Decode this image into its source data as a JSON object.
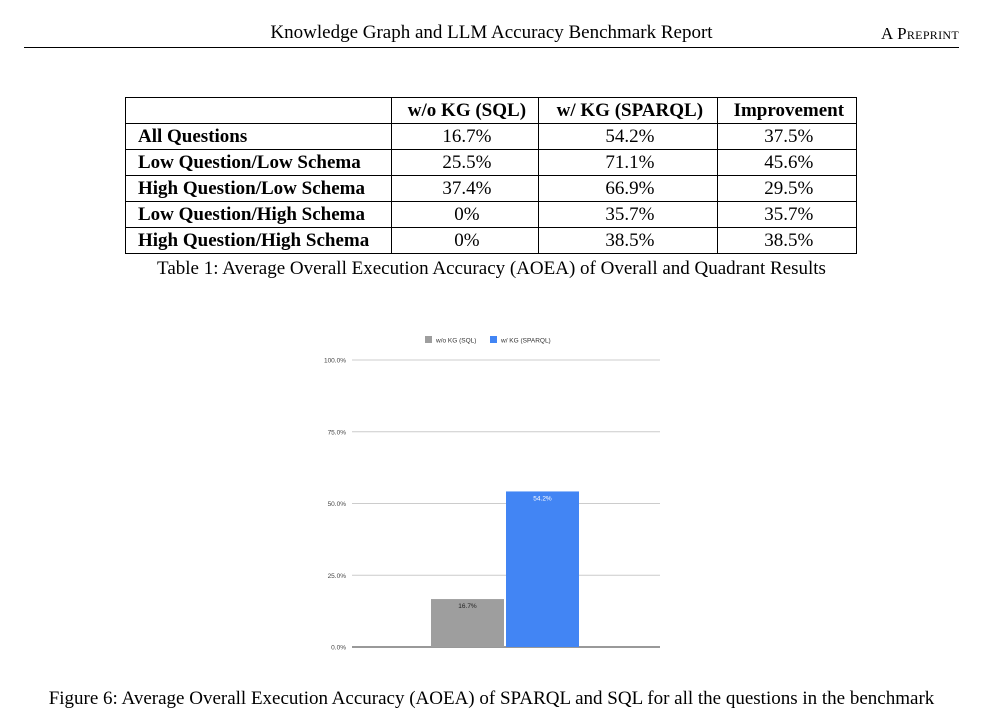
{
  "header": {
    "title": "Knowledge Graph and LLM Accuracy Benchmark Report",
    "preprint": "A Preprint"
  },
  "table": {
    "columns": [
      "",
      "w/o KG (SQL)",
      "w/ KG (SPARQL)",
      "Improvement"
    ],
    "rows": [
      {
        "label": "All Questions",
        "sql": "16.7%",
        "sparql": "54.2%",
        "improvement": "37.5%"
      },
      {
        "label": "Low Question/Low Schema",
        "sql": "25.5%",
        "sparql": "71.1%",
        "improvement": "45.6%"
      },
      {
        "label": "High Question/Low Schema",
        "sql": "37.4%",
        "sparql": "66.9%",
        "improvement": "29.5%"
      },
      {
        "label": "Low Question/High Schema",
        "sql": "0%",
        "sparql": "35.7%",
        "improvement": "35.7%"
      },
      {
        "label": "High Question/High Schema",
        "sql": "0%",
        "sparql": "38.5%",
        "improvement": "38.5%"
      }
    ],
    "caption": "Table 1: Average Overall Execution Accuracy (AOEA) of Overall and Quadrant Results"
  },
  "chart_data": {
    "type": "bar",
    "categories": [
      ""
    ],
    "series": [
      {
        "name": "w/o KG (SQL)",
        "values": [
          16.7
        ],
        "labels": [
          "16.7%"
        ],
        "color": "#9e9e9e"
      },
      {
        "name": "w/ KG (SPARQL)",
        "values": [
          54.2
        ],
        "labels": [
          "54.2%"
        ],
        "color": "#4285f4"
      }
    ],
    "ylim": [
      0,
      100
    ],
    "yticks": [
      "0.0%",
      "25.0%",
      "50.0%",
      "75.0%",
      "100.0%"
    ],
    "ytick_values": [
      0,
      25,
      50,
      75,
      100
    ],
    "legend": "top",
    "grid": true
  },
  "figure": {
    "caption": "Figure 6: Average Overall Execution Accuracy (AOEA) of SPARQL and SQL for all the questions in the benchmark"
  }
}
